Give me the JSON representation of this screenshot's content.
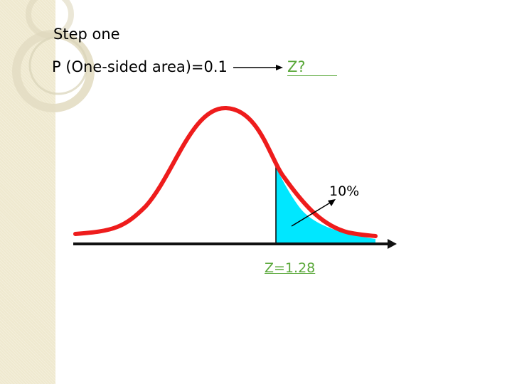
{
  "slide": {
    "title": "Step one",
    "problem_text": "P (One-sided area)=0.1",
    "question_text": "Z?",
    "percent_label": "10%",
    "result_text": "Z=1.28"
  },
  "colors": {
    "curve": "#ee1c1c",
    "tail_fill": "#00e7ff",
    "axis": "#111111",
    "answer_text": "#5aa83a",
    "side_strip": "#efe9cf"
  }
}
